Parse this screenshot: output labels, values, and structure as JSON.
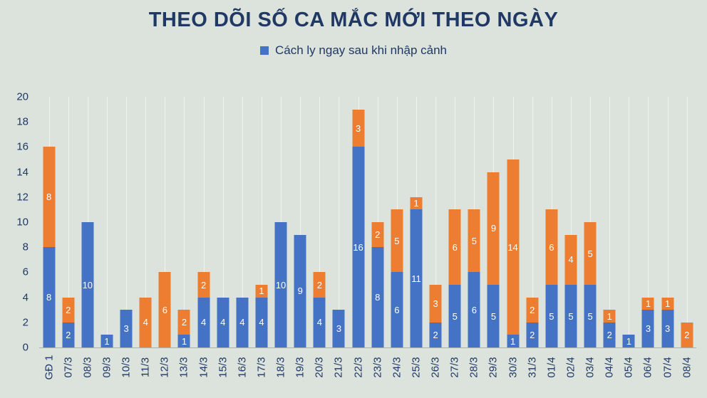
{
  "title": "THEO DÕI SỐ CA MẮC MỚI THEO NGÀY",
  "legend": {
    "items": [
      {
        "label": "Cách ly ngay sau khi nhập cảnh",
        "color": "#4472c4"
      }
    ]
  },
  "colors": {
    "background": "#dce3dc",
    "title_text": "#1f3864",
    "axis_text": "#1f3864",
    "gridline": "#f0f4f0",
    "axis_line": "#aab4ab",
    "bar_label": "#ffffff",
    "series_blue": "#4472c4",
    "series_orange": "#ed7d31"
  },
  "chart_data": {
    "type": "bar",
    "subtype": "stacked",
    "title": "THEO DÕI SỐ CA MẮC MỚI THEO NGÀY",
    "xlabel": "",
    "ylabel": "",
    "ylim": [
      0,
      20
    ],
    "ytick_step": 2,
    "grid": "vertical",
    "legend_position": "top",
    "show_value_labels": true,
    "categories": [
      "GĐ 1",
      "07/3",
      "08/3",
      "09/3",
      "10/3",
      "11/3",
      "12/3",
      "13/3",
      "14/3",
      "15/3",
      "16/3",
      "17/3",
      "18/3",
      "19/3",
      "20/3",
      "21/3",
      "22/3",
      "23/3",
      "24/3",
      "25/3",
      "26/3",
      "27/3",
      "28/3",
      "29/3",
      "30/3",
      "31/3",
      "01/4",
      "02/4",
      "03/4",
      "04/4",
      "05/4",
      "06/4",
      "07/4",
      "08/4"
    ],
    "series": [
      {
        "name": "Cách ly ngay sau khi nhập cảnh",
        "color": "#4472c4",
        "values": [
          8,
          2,
          10,
          1,
          3,
          0,
          0,
          1,
          4,
          4,
          4,
          4,
          10,
          9,
          4,
          3,
          16,
          8,
          6,
          11,
          2,
          5,
          6,
          5,
          1,
          2,
          5,
          5,
          5,
          2,
          1,
          3,
          3,
          0
        ]
      },
      {
        "name": "",
        "color": "#ed7d31",
        "values": [
          8,
          2,
          0,
          0,
          0,
          4,
          6,
          2,
          2,
          0,
          0,
          1,
          0,
          0,
          2,
          0,
          3,
          2,
          5,
          1,
          3,
          6,
          5,
          9,
          14,
          2,
          6,
          4,
          5,
          1,
          0,
          1,
          1,
          2
        ]
      }
    ],
    "totals": [
      16,
      4,
      10,
      1,
      3,
      4,
      6,
      3,
      6,
      4,
      4,
      5,
      10,
      9,
      6,
      3,
      19,
      10,
      11,
      12,
      5,
      11,
      11,
      14,
      15,
      4,
      11,
      9,
      10,
      3,
      1,
      4,
      4,
      2
    ]
  }
}
